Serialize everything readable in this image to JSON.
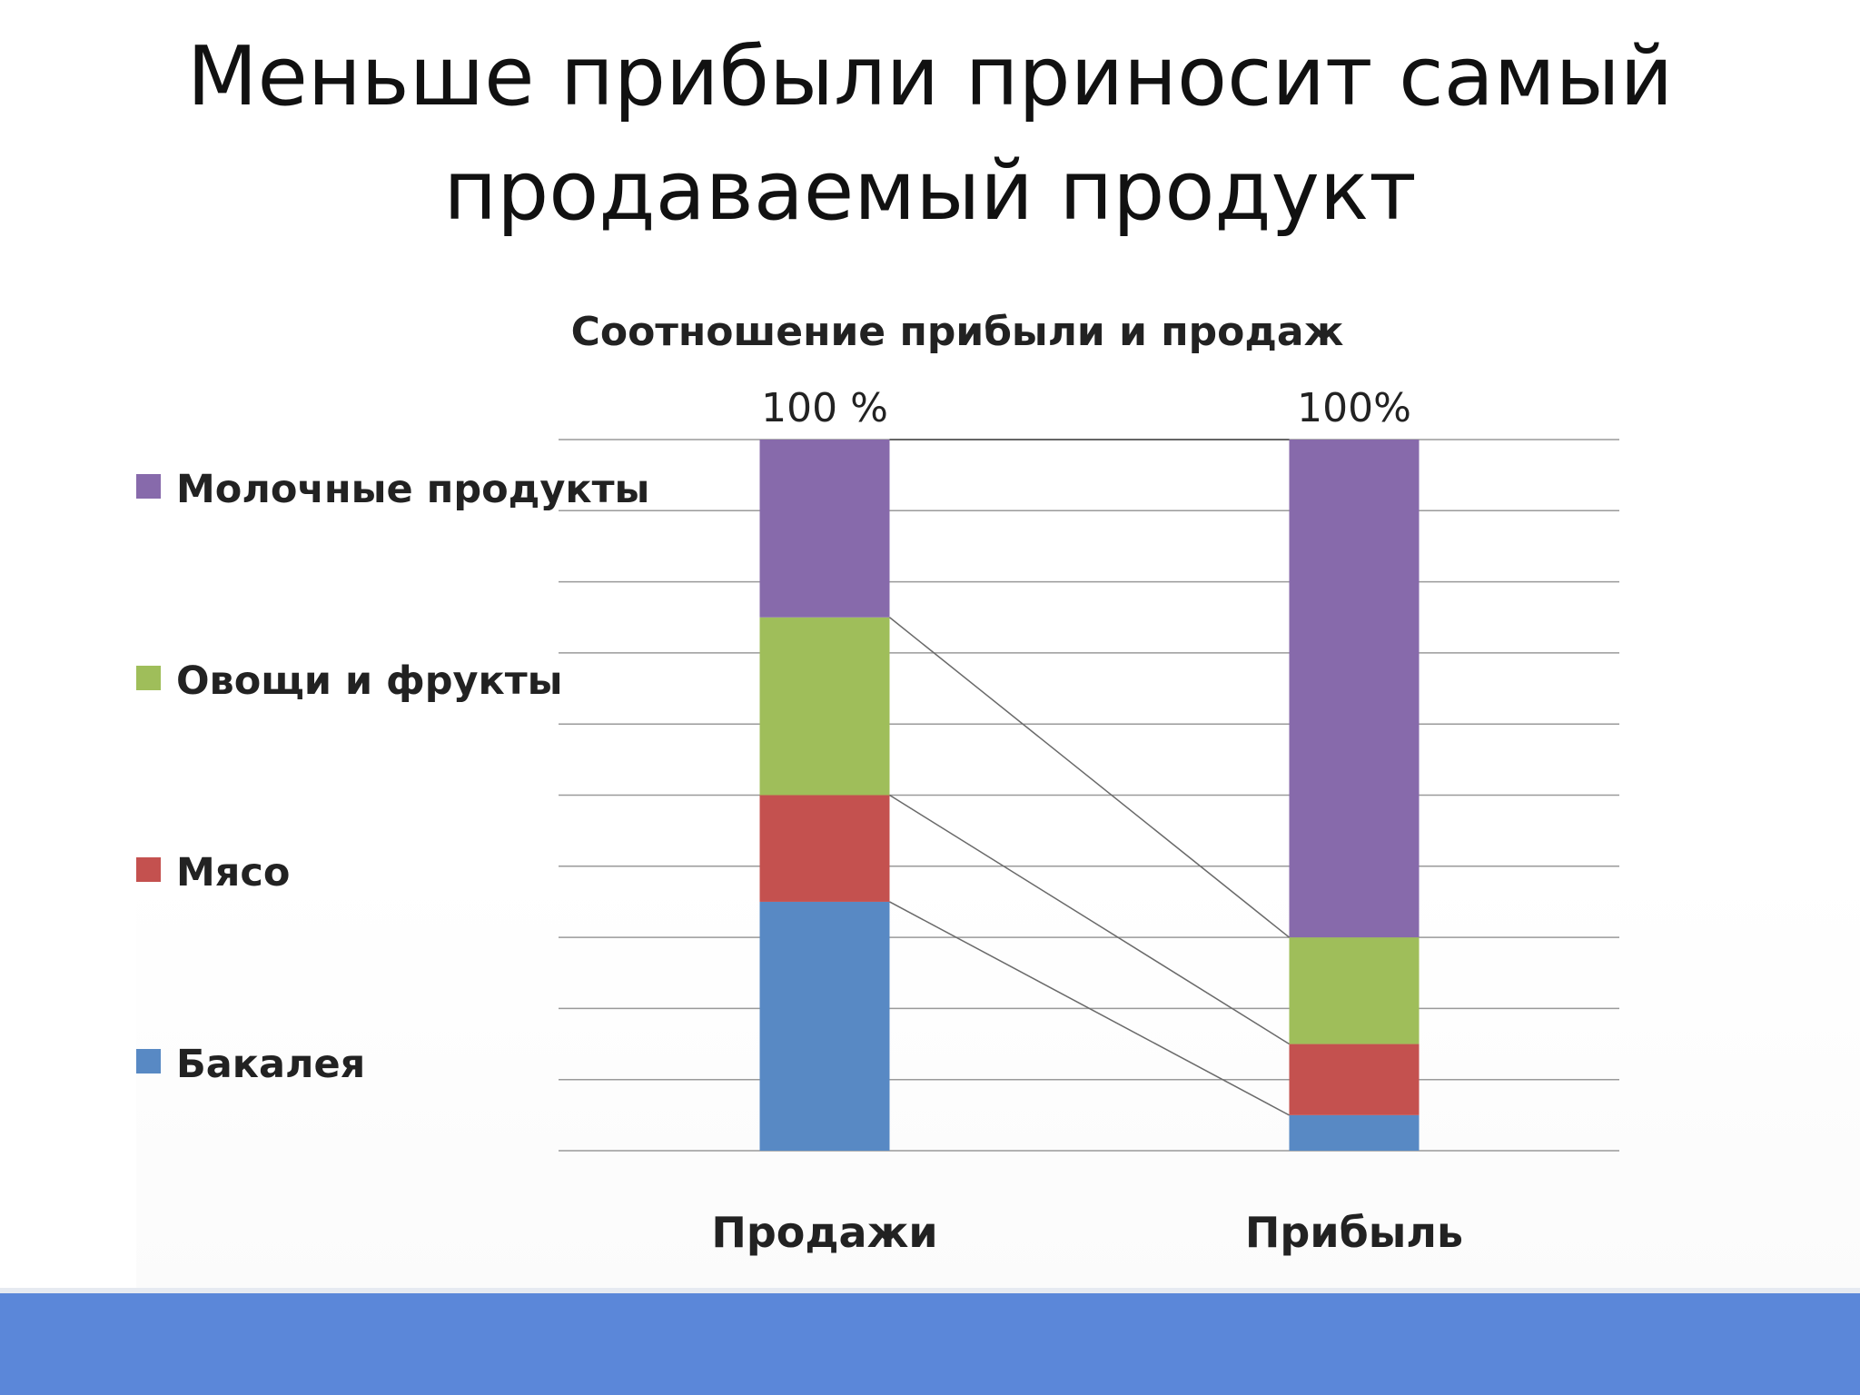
{
  "slide": {
    "title_line1": "Меньше прибыли приносит самый",
    "title_line2": "продаваемый продукт"
  },
  "colors": {
    "Бакалея": "#5889c4",
    "Мясо": "#c4514f",
    "Овощи и фрукты": "#9fbe5a",
    "Молочные продукты": "#876aab",
    "gridline": "#9a9a9a",
    "connector": "#6a6a6a",
    "band": "#5b87d9"
  },
  "chart_data": {
    "type": "bar",
    "stacked": true,
    "title": "Соотношение прибыли и продаж",
    "categories": [
      "Продажи",
      "Прибыль"
    ],
    "top_labels": [
      "100 %",
      "100%"
    ],
    "series": [
      {
        "name": "Бакалея",
        "values": [
          35,
          5
        ]
      },
      {
        "name": "Мясо",
        "values": [
          15,
          10
        ]
      },
      {
        "name": "Овощи и фрукты",
        "values": [
          25,
          15
        ]
      },
      {
        "name": "Молочные продукты",
        "values": [
          25,
          70
        ]
      }
    ],
    "ylim": [
      0,
      100
    ],
    "grid": true,
    "gridline_step": 10,
    "legend_placement": "left",
    "connector_lines": true
  }
}
